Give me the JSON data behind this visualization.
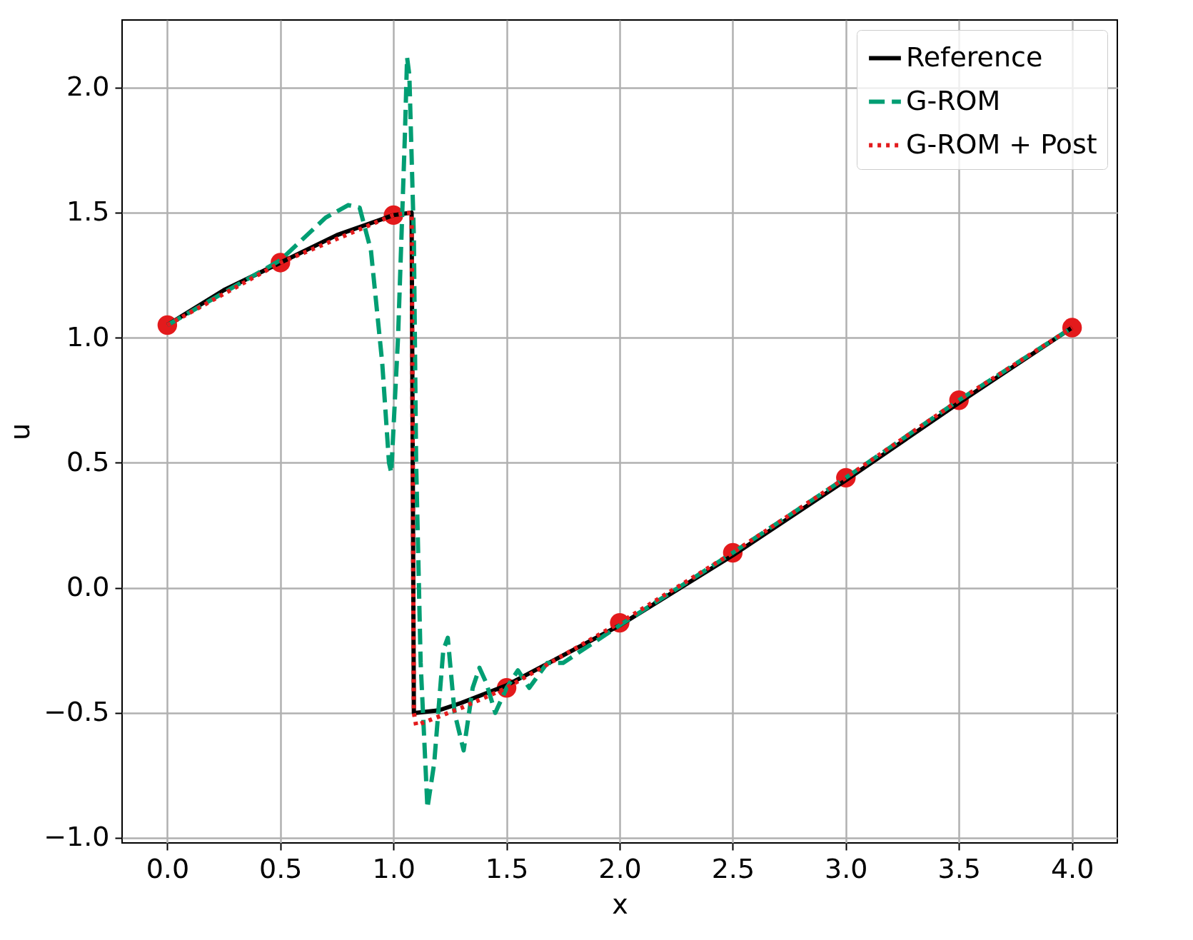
{
  "chart_data": {
    "type": "line",
    "xlabel": "x",
    "ylabel": "u",
    "xlim": [
      -0.2,
      4.2
    ],
    "ylim": [
      -1.02,
      2.27
    ],
    "xticks": [
      {
        "value": 0,
        "label": "0.0"
      },
      {
        "value": 0.5,
        "label": "0.5"
      },
      {
        "value": 1,
        "label": "1.0"
      },
      {
        "value": 1.5,
        "label": "1.5"
      },
      {
        "value": 2,
        "label": "2.0"
      },
      {
        "value": 2.5,
        "label": "2.5"
      },
      {
        "value": 3,
        "label": "3.0"
      },
      {
        "value": 3.5,
        "label": "3.5"
      },
      {
        "value": 4,
        "label": "4.0"
      }
    ],
    "yticks": [
      {
        "value": -1,
        "label": "−1.0"
      },
      {
        "value": -0.5,
        "label": "−0.5"
      },
      {
        "value": 0,
        "label": "0.0"
      },
      {
        "value": 0.5,
        "label": "0.5"
      },
      {
        "value": 1,
        "label": "1.0"
      },
      {
        "value": 1.5,
        "label": "1.5"
      },
      {
        "value": 2,
        "label": "2.0"
      }
    ],
    "grid": true,
    "legend": "top right",
    "series": [
      {
        "name": "Reference",
        "color": "#000000",
        "line_style": "solid",
        "x": [
          0,
          0.25,
          0.5,
          0.75,
          1.0,
          1.08,
          1.09,
          1.1,
          1.2,
          1.3,
          1.5,
          2,
          2.5,
          3,
          3.5,
          4
        ],
        "values": [
          1.05,
          1.19,
          1.3,
          1.41,
          1.49,
          1.5,
          -0.5,
          -0.5,
          -0.49,
          -0.46,
          -0.39,
          -0.15,
          0.13,
          0.43,
          0.74,
          1.04
        ]
      },
      {
        "name": "G-ROM",
        "color": "#009e73",
        "line_style": "dashed",
        "x": [
          0,
          0.5,
          0.7,
          0.8,
          0.85,
          0.9,
          0.95,
          0.98,
          0.99,
          1.02,
          1.05,
          1.06,
          1.07,
          1.09,
          1.1,
          1.12,
          1.15,
          1.18,
          1.22,
          1.24,
          1.27,
          1.31,
          1.35,
          1.38,
          1.41,
          1.45,
          1.5,
          1.55,
          1.6,
          1.68,
          1.75,
          1.8,
          2,
          2.5,
          3,
          3.5,
          4
        ],
        "values": [
          1.05,
          1.31,
          1.48,
          1.53,
          1.52,
          1.35,
          0.9,
          0.5,
          0.46,
          1.0,
          1.8,
          2.12,
          2.05,
          1.4,
          0.5,
          -0.3,
          -0.88,
          -0.7,
          -0.25,
          -0.2,
          -0.5,
          -0.65,
          -0.4,
          -0.32,
          -0.38,
          -0.5,
          -0.4,
          -0.33,
          -0.4,
          -0.3,
          -0.3,
          -0.27,
          -0.15,
          0.14,
          0.44,
          0.75,
          1.04
        ]
      },
      {
        "name": "G-ROM + Post",
        "color": "#e31a1c",
        "line_style": "dotted",
        "x": [
          0,
          0.5,
          1.0,
          1.08,
          1.09,
          1.1,
          1.3,
          1.5,
          2,
          2.5,
          3,
          3.5,
          4
        ],
        "values": [
          1.05,
          1.3,
          1.49,
          1.5,
          -0.5,
          -0.55,
          -0.48,
          -0.4,
          -0.14,
          0.14,
          0.44,
          0.75,
          1.04
        ]
      },
      {
        "type": "scatter",
        "color": "#e31a1c",
        "marker": "circle",
        "x": [
          0,
          0.5,
          1.0,
          1.5,
          2,
          2.5,
          3,
          3.5,
          4
        ],
        "values": [
          1.05,
          1.3,
          1.49,
          -0.4,
          -0.14,
          0.14,
          0.44,
          0.75,
          1.04
        ]
      }
    ]
  }
}
